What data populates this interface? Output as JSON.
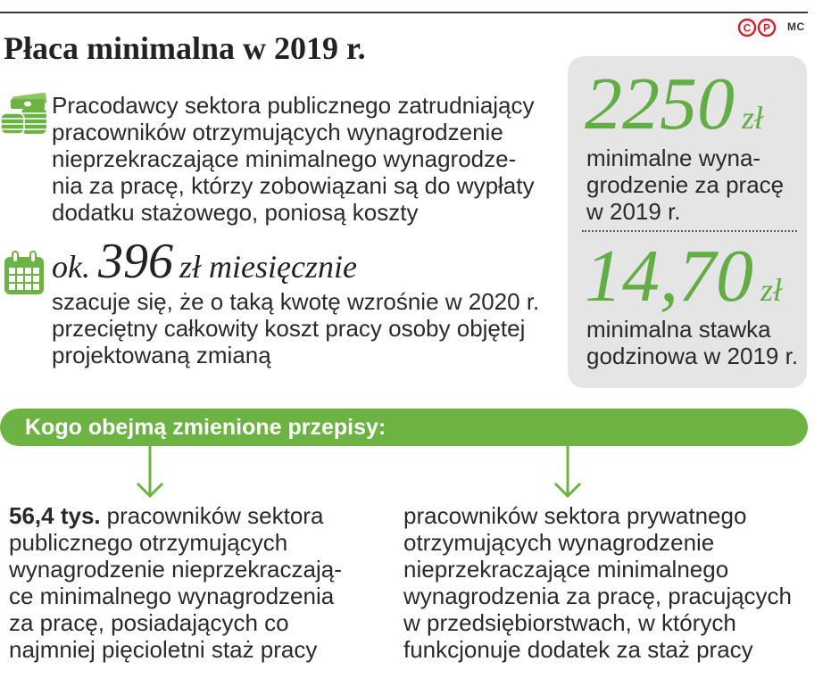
{
  "header": {
    "logo_letters": [
      "C",
      "P"
    ],
    "author": "MC"
  },
  "title": "Płaca minimalna w 2019 r.",
  "intro": {
    "icon": "money-icon",
    "lines": [
      "Pracodawcy sektora publicznego zatrudniający",
      "pracowników otrzymujących wynagrodzenie",
      "nieprzekraczające minimalnego wynagrodze-",
      "nia za pracę, którzy zobowiązani są do wypłaty",
      "dodatku stażowego, poniosą koszty"
    ]
  },
  "highlight": {
    "icon": "calendar-icon",
    "prefix": "ok.",
    "value": "396",
    "suffix": "zł miesięcznie",
    "lines": [
      "szacuje się, że o taką kwotę wzrośnie w 2020 r.",
      "przeciętny całkowity koszt pracy osoby objętej",
      "projektowaną zmianą"
    ]
  },
  "stats": [
    {
      "value": "2250",
      "unit": "zł",
      "lines": [
        "minimalne wyna-",
        "grodzenie za pracę",
        "w 2019 r."
      ]
    },
    {
      "value": "14,70",
      "unit": "zł",
      "lines": [
        "minimalna stawka",
        "godzinowa w 2019 r."
      ]
    }
  ],
  "banner": {
    "text": "Kogo obejmą zmienione przepisy:",
    "arrow_icon": "arrow-down-icon"
  },
  "groups": [
    {
      "lead": "56,4 tys.",
      "lines": [
        "pracowników sektora",
        "publicznego otrzymujących",
        "wynagrodzenie nieprzekraczają-",
        "ce minimalnego wynagrodzenia",
        "za pracę, posiadających co",
        "najmniej pięcioletni staż pracy"
      ]
    },
    {
      "lines": [
        "pracowników sektora prywatnego",
        "otrzymujących wynagrodzenie",
        "nieprzekraczające minimalnego",
        "wynagrodzenia za pracę, pracujących",
        "w przedsiębiorstwach, w których",
        "funkcjonuje dodatek za staż pracy"
      ]
    }
  ],
  "colors": {
    "accent": "#6cb343",
    "number": "#63ad45",
    "panel": "#e5e5e5",
    "logo": "#d4202a",
    "text": "#2a2a2a"
  }
}
